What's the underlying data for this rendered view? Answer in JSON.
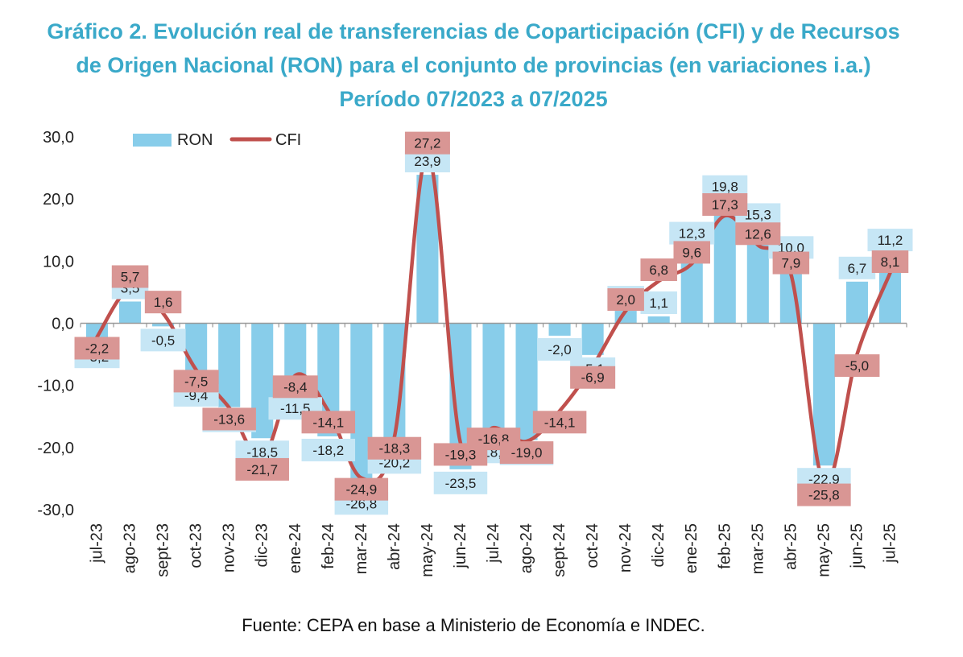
{
  "title": {
    "line1": "Gráfico 2. Evolución real de transferencias de Coparticipación (CFI) y de Recursos",
    "line2": "de Origen Nacional (RON) para el conjunto de provincias (en variaciones i.a.)",
    "line3": "Período 07/2023 a 07/2025"
  },
  "source": "Fuente: CEPA en base a Ministerio de Economía e INDEC.",
  "colors": {
    "ron": "#88cdea",
    "ron_label_bg": "#c6e6f5",
    "cfi": "#c0504d",
    "cfi_label_bg": "#d99694",
    "title": "#3aa9c9"
  },
  "chart_data": {
    "type": "bar",
    "categories": [
      "jul-23",
      "ago-23",
      "sept-23",
      "oct-23",
      "nov-23",
      "dic-23",
      "ene-24",
      "feb-24",
      "mar-24",
      "abr-24",
      "may-24",
      "jun-24",
      "jul-24",
      "ago-24",
      "sept-24",
      "oct-24",
      "nov-24",
      "dic-24",
      "ene-25",
      "feb-25",
      "mar-25",
      "abr-25",
      "may-25",
      "jun-25",
      "jul-25"
    ],
    "series": [
      {
        "name": "RON",
        "type": "bar",
        "values": [
          -3.2,
          3.5,
          -0.5,
          -9.4,
          -13.5,
          -18.5,
          -11.5,
          -18.2,
          -26.8,
          -20.2,
          23.9,
          -23.5,
          -18.5,
          -18.8,
          -2.0,
          -5.1,
          2.0,
          1.1,
          12.3,
          19.8,
          15.3,
          10.0,
          -22.9,
          6.7,
          11.2
        ],
        "labels": [
          "-3,2",
          "3,5",
          "-0,5",
          "-9,4",
          "-13,5",
          "-18,5",
          "-11,5",
          "-18,2",
          "-26,8",
          "-20,2",
          "23,9",
          "-23,5",
          "-18,5",
          "-18,8",
          "-2,0",
          "-5,1",
          "2,0",
          "1,1",
          "12,3",
          "19,8",
          "15,3",
          "10,0",
          "-22,9",
          "6,7",
          "11,2"
        ]
      },
      {
        "name": "CFI",
        "type": "line",
        "values": [
          -2.2,
          5.7,
          1.6,
          -7.5,
          -13.6,
          -21.7,
          -8.4,
          -14.1,
          -24.9,
          -18.3,
          27.2,
          -19.3,
          -16.8,
          -19.0,
          -14.1,
          -6.9,
          2.0,
          6.8,
          9.6,
          17.3,
          12.6,
          7.9,
          -25.8,
          -5.0,
          8.1
        ],
        "labels": [
          "-2,2",
          "5,7",
          "1,6",
          "-7,5",
          "-13,6",
          "-21,7",
          "-8,4",
          "-14,1",
          "-24,9",
          "-18,3",
          "27,2",
          "-19,3",
          "-16,8",
          "-19,0",
          "-14,1",
          "-6,9",
          "2,0",
          "6,8",
          "9,6",
          "17,3",
          "12,6",
          "7,9",
          "-25,8",
          "-5,0",
          "8,1"
        ]
      }
    ],
    "y_ticks": [
      "30,0",
      "20,0",
      "10,0",
      "0,0",
      "-10,0",
      "-20,0",
      "-30,0"
    ],
    "ylim": [
      -30,
      30
    ],
    "legend_position": "top-left",
    "grid": false
  }
}
